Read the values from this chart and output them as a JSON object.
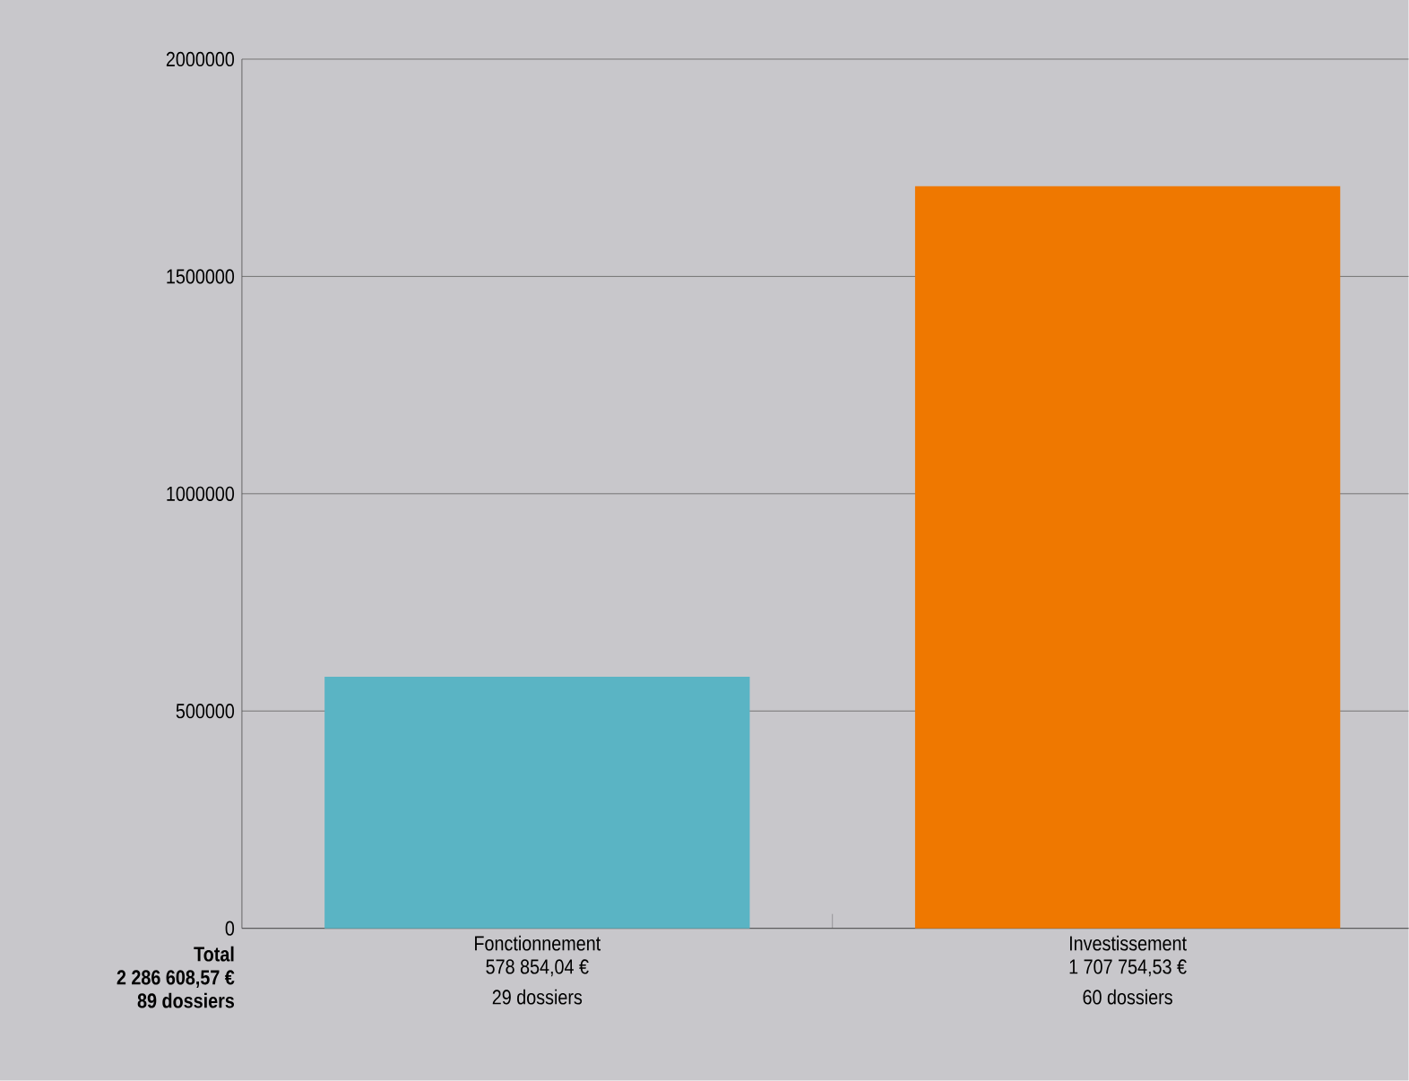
{
  "chart_data": {
    "type": "bar",
    "categories": [
      "Fonctionnement",
      "Investissement"
    ],
    "values": [
      578854.04,
      1707754.53
    ],
    "colors": [
      "#5ab4c4",
      "#ef7800"
    ],
    "value_labels": [
      "578 854,04 €",
      "1 707 754,53 €"
    ],
    "ylim": [
      0,
      2000000
    ],
    "yticks": [
      0,
      500000,
      1000000,
      1500000,
      2000000
    ],
    "grid": "y",
    "annotations": [
      "29 dossiers",
      "60 dossiers",
      "Total",
      "2 286 608,57 €",
      "89 dossiers"
    ]
  }
}
